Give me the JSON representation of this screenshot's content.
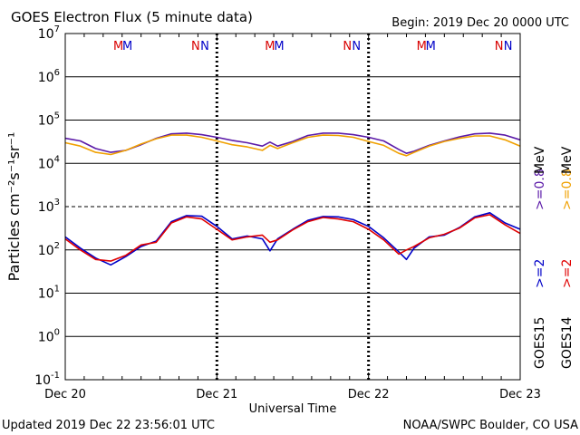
{
  "header": {
    "title": "GOES Electron Flux (5 minute data)",
    "begin": "Begin: 2019 Dec 20 0000 UTC"
  },
  "footer": {
    "updated": "Updated 2019 Dec 22 23:56:01 UTC",
    "credit": "NOAA/SWPC Boulder, CO USA"
  },
  "axes": {
    "ylabel": "Particles cm⁻²s⁻¹sr⁻¹",
    "xlabel": "Universal Time",
    "yticks": [
      {
        "base": "10",
        "exp": "-1"
      },
      {
        "base": "10",
        "exp": "0"
      },
      {
        "base": "10",
        "exp": "1"
      },
      {
        "base": "10",
        "exp": "2"
      },
      {
        "base": "10",
        "exp": "3"
      },
      {
        "base": "10",
        "exp": "4"
      },
      {
        "base": "10",
        "exp": "5"
      },
      {
        "base": "10",
        "exp": "6"
      },
      {
        "base": "10",
        "exp": "7"
      }
    ],
    "xticks": [
      "Dec 20",
      "Dec 21",
      "Dec 22",
      "Dec 23"
    ]
  },
  "markers": {
    "red": "#d80000",
    "blue": "#0000c8",
    "items": [
      {
        "day": 0.35,
        "label": "M",
        "color": "red"
      },
      {
        "day": 0.41,
        "label": "M",
        "color": "blue"
      },
      {
        "day": 0.86,
        "label": "N",
        "color": "red"
      },
      {
        "day": 0.92,
        "label": "N",
        "color": "blue"
      },
      {
        "day": 1.35,
        "label": "M",
        "color": "red"
      },
      {
        "day": 1.41,
        "label": "M",
        "color": "blue"
      },
      {
        "day": 1.86,
        "label": "N",
        "color": "red"
      },
      {
        "day": 1.92,
        "label": "N",
        "color": "blue"
      },
      {
        "day": 2.35,
        "label": "M",
        "color": "red"
      },
      {
        "day": 2.41,
        "label": "M",
        "color": "blue"
      },
      {
        "day": 2.86,
        "label": "N",
        "color": "red"
      },
      {
        "day": 2.92,
        "label": "N",
        "color": "blue"
      }
    ]
  },
  "legend": {
    "goes15": {
      "sat": "GOES15",
      "e2": ">=2",
      "e08": ">=0.8",
      "unit": "MeV"
    },
    "goes14": {
      "sat": "GOES14",
      "e2": ">=2",
      "e08": ">=0.8",
      "unit": "MeV"
    }
  },
  "chart_data": {
    "type": "line",
    "title": "GOES Electron Flux (5 minute data)",
    "xlabel": "Universal Time",
    "ylabel": "Particles cm-2 s-1 sr-1",
    "yscale": "log",
    "ylim": [
      0.1,
      10000000
    ],
    "xlim": [
      "2019-12-20 00:00",
      "2019-12-23 00:00"
    ],
    "x_unit": "days from 2019 Dec 20 0000 UTC",
    "threshold": 1000,
    "series": [
      {
        "name": "GOES15 >=0.8 MeV",
        "color": "#5b1aa8",
        "x": [
          0,
          0.1,
          0.2,
          0.3,
          0.4,
          0.5,
          0.6,
          0.7,
          0.8,
          0.9,
          1.0,
          1.1,
          1.2,
          1.3,
          1.35,
          1.4,
          1.5,
          1.6,
          1.7,
          1.8,
          1.9,
          2.0,
          2.1,
          2.2,
          2.25,
          2.3,
          2.4,
          2.5,
          2.6,
          2.7,
          2.8,
          2.9,
          3.0
        ],
        "values": [
          38000,
          33000,
          22000,
          18000,
          20000,
          27000,
          38000,
          48000,
          50000,
          46000,
          40000,
          34000,
          30000,
          25000,
          31000,
          25000,
          32000,
          44000,
          50000,
          50000,
          46000,
          40000,
          33000,
          21000,
          17000,
          19000,
          26000,
          33000,
          41000,
          48000,
          50000,
          45000,
          35000
        ]
      },
      {
        "name": "GOES14 >=0.8 MeV",
        "color": "#f0a000",
        "x": [
          0,
          0.1,
          0.2,
          0.3,
          0.4,
          0.5,
          0.6,
          0.7,
          0.8,
          0.9,
          1.0,
          1.1,
          1.2,
          1.3,
          1.35,
          1.4,
          1.5,
          1.6,
          1.7,
          1.8,
          1.9,
          2.0,
          2.1,
          2.2,
          2.25,
          2.3,
          2.4,
          2.5,
          2.6,
          2.7,
          2.8,
          2.9,
          3.0
        ],
        "values": [
          30000,
          25000,
          18000,
          16000,
          20000,
          28000,
          37000,
          45000,
          45000,
          40000,
          33000,
          27000,
          24000,
          20000,
          26000,
          22000,
          30000,
          40000,
          45000,
          44000,
          40000,
          32000,
          26000,
          17000,
          15000,
          18000,
          25000,
          32000,
          38000,
          43000,
          43000,
          35000,
          25000
        ]
      },
      {
        "name": "GOES15 >=2 MeV",
        "color": "#0000c8",
        "x": [
          0,
          0.1,
          0.2,
          0.3,
          0.4,
          0.5,
          0.6,
          0.7,
          0.8,
          0.9,
          1.0,
          1.1,
          1.2,
          1.3,
          1.35,
          1.4,
          1.5,
          1.6,
          1.7,
          1.8,
          1.9,
          2.0,
          2.1,
          2.2,
          2.25,
          2.3,
          2.4,
          2.5,
          2.6,
          2.7,
          2.8,
          2.9,
          3.0
        ],
        "values": [
          200,
          110,
          65,
          45,
          70,
          120,
          160,
          450,
          620,
          600,
          350,
          180,
          210,
          180,
          95,
          180,
          300,
          480,
          590,
          580,
          500,
          350,
          190,
          90,
          60,
          110,
          200,
          220,
          330,
          580,
          720,
          420,
          300
        ]
      },
      {
        "name": "GOES14 >=2 MeV",
        "color": "#e00000",
        "x": [
          0,
          0.1,
          0.2,
          0.3,
          0.4,
          0.5,
          0.6,
          0.7,
          0.8,
          0.9,
          1.0,
          1.1,
          1.2,
          1.3,
          1.35,
          1.4,
          1.5,
          1.6,
          1.7,
          1.8,
          1.9,
          2.0,
          2.1,
          2.2,
          2.25,
          2.3,
          2.4,
          2.5,
          2.6,
          2.7,
          2.8,
          2.9,
          3.0
        ],
        "values": [
          180,
          100,
          60,
          55,
          75,
          130,
          150,
          420,
          580,
          520,
          300,
          170,
          200,
          220,
          150,
          170,
          290,
          450,
          560,
          520,
          450,
          300,
          170,
          80,
          100,
          120,
          190,
          230,
          320,
          550,
          650,
          380,
          240
        ]
      }
    ]
  }
}
